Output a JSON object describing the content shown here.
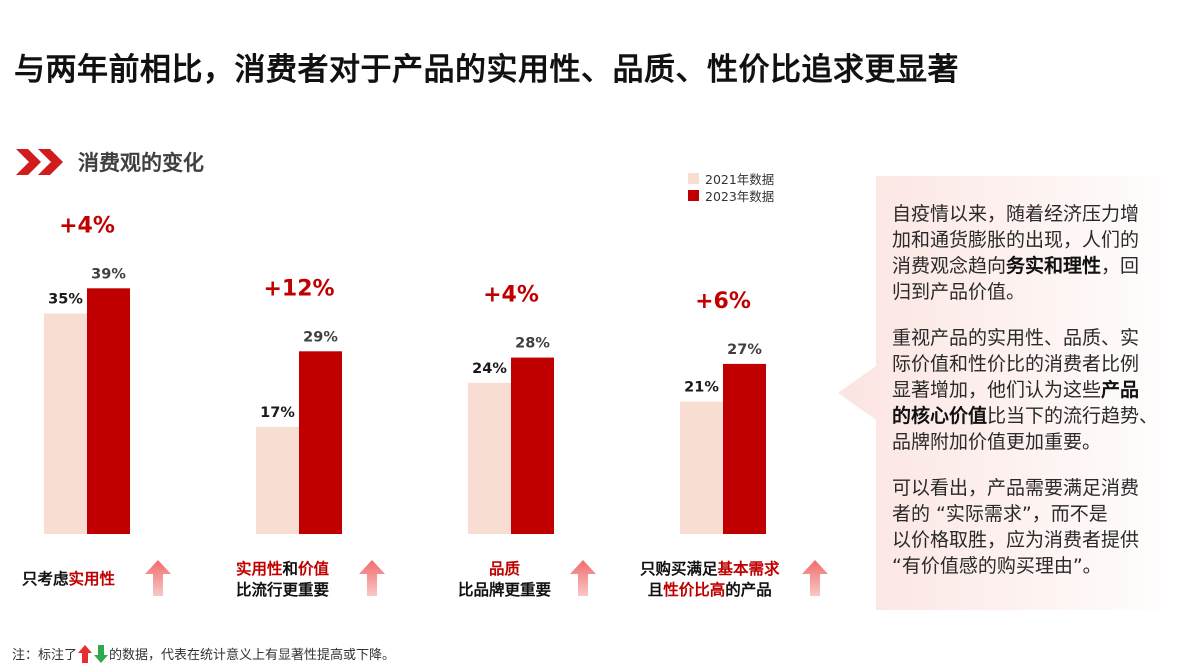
{
  "title": "与两年前相比，消费者对于产品的实用性、品质、性价比追求更显著",
  "section_title": "消费观的变化",
  "colors": {
    "series_2021": "#f8ddd2",
    "series_2023": "#c00000",
    "accent": "#c00000",
    "up": "#e63030",
    "down": "#2fa84f"
  },
  "chart_data": {
    "type": "bar",
    "series": [
      {
        "name": "2021年数据",
        "values": [
          35,
          17,
          24,
          21
        ]
      },
      {
        "name": "2023年数据",
        "values": [
          39,
          29,
          28,
          27
        ]
      }
    ],
    "value_labels_2021": [
      "35%",
      "17%",
      "24%",
      "21%"
    ],
    "value_labels_2023": [
      "39%",
      "29%",
      "28%",
      "27%"
    ],
    "changes": [
      "+4%",
      "+12%",
      "+4%",
      "+6%"
    ],
    "categories": [
      "只考虑实用性",
      "实用性和价值比流行更重要",
      "品质比品牌更重要",
      "只购买满足基本需求且性价比高的产品"
    ],
    "ylim": [
      0,
      42
    ],
    "grid": false,
    "legend_position": "top-right"
  },
  "category_labels": [
    {
      "l1_a": "只考虑",
      "l1_b": "实用性"
    },
    {
      "l1_a": "实用性",
      "l1_b": "和",
      "l1_c": "价值",
      "l2": "比流行更重要"
    },
    {
      "l1": "品质",
      "l2": "比品牌更重要"
    },
    {
      "l1_a": "只购买满足",
      "l1_b": "基本需求",
      "l2_a": "且",
      "l2_b": "性价比高",
      "l2_c": "的产品"
    }
  ],
  "panel": {
    "p1_a": "自疫情以来，随着经济压力增",
    "p1_b": "加和通货膨胀的出现，人们的",
    "p1_c1": "消费观念趋向",
    "p1_c_bold": "务实和理性",
    "p1_c2": "，回",
    "p1_d": "归到产品价值。",
    "p2_a": "重视产品的实用性、品质、实",
    "p2_b": "际价值和性价比的消费者比例",
    "p2_c1": "显著增加，他们认为这些",
    "p2_c_bold": "产品",
    "p2_d_bold": "的核心价值",
    "p2_d2": "比当下的流行趋势、",
    "p2_e": "品牌附加价值更加重要。",
    "p3_a": "可以看出，产品需要满足消费",
    "p3_b": "者的 “实际需求”，而不是",
    "p3_c": "以价格取胜，应为消费者提供",
    "p3_d": "“有价值感的购买理由”。"
  },
  "note": {
    "prefix": "注：标注了",
    "suffix": "的数据，代表在统计意义上有显著性提高或下降。"
  }
}
